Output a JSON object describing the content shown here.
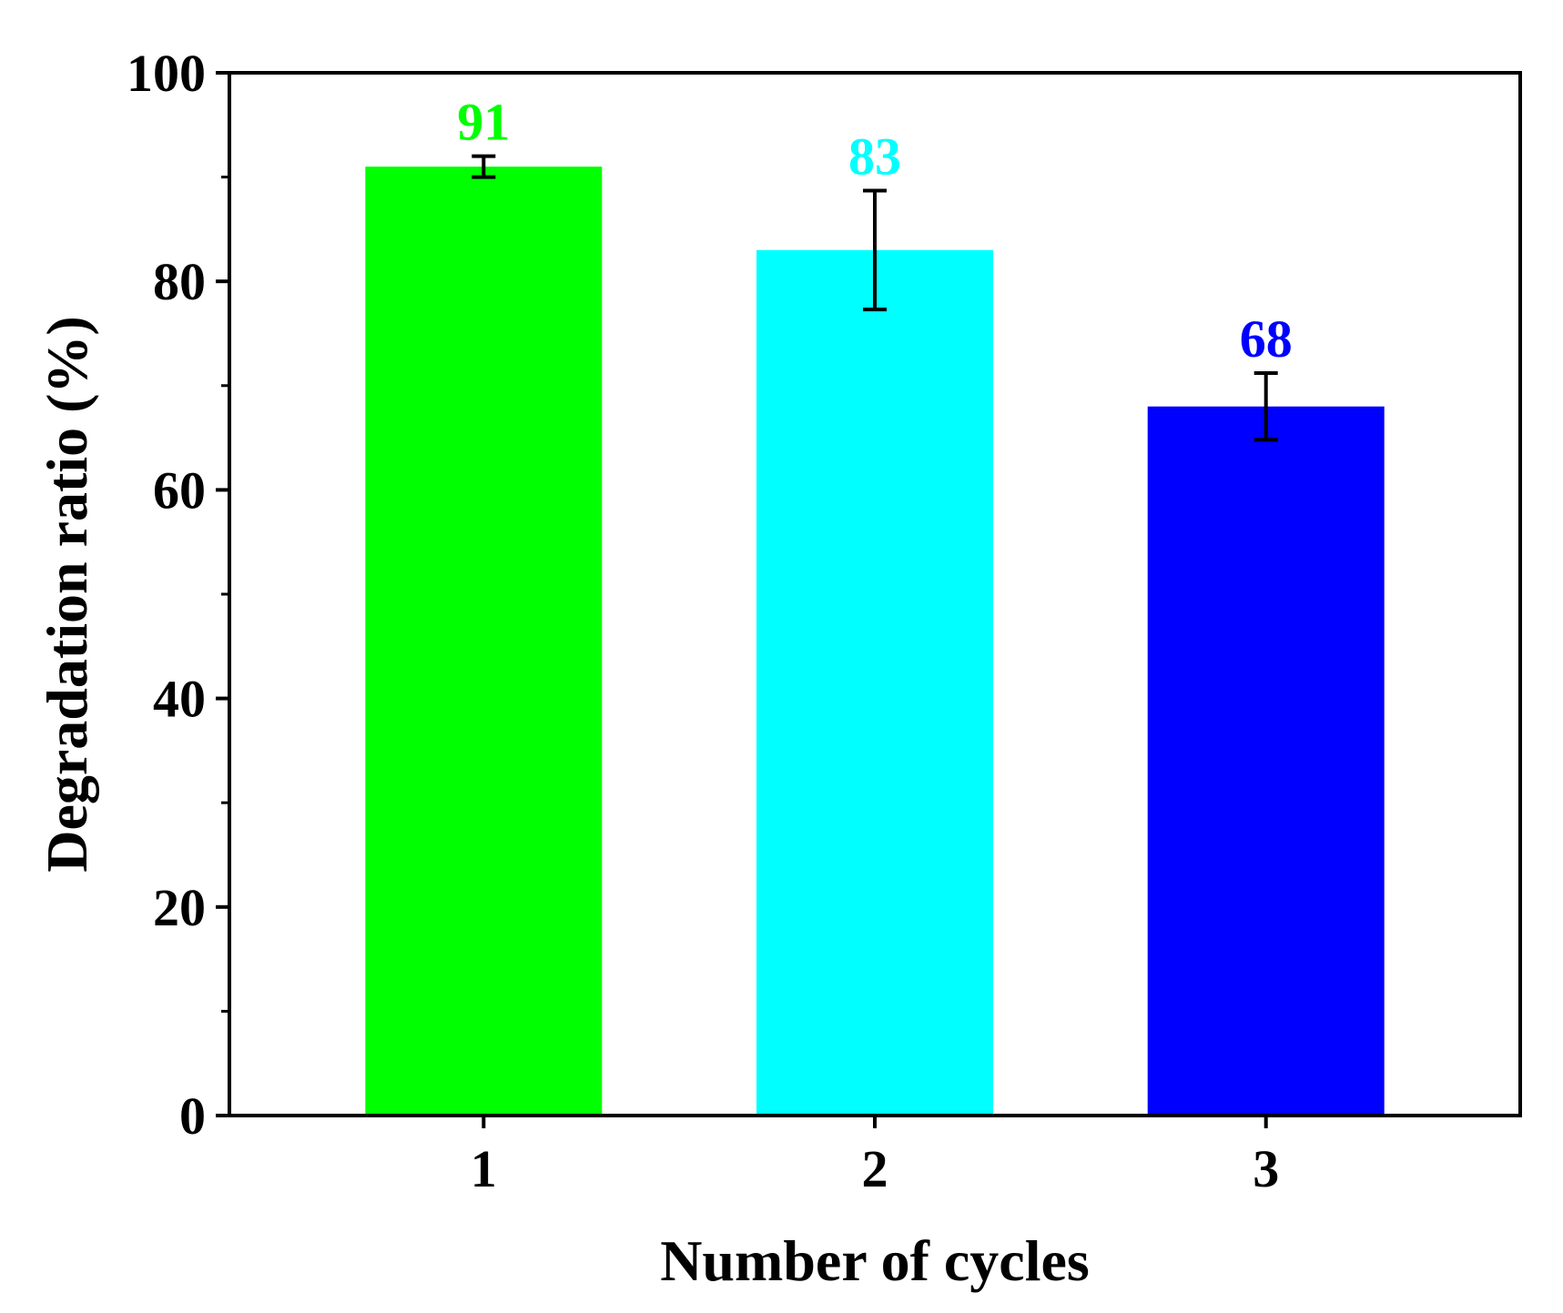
{
  "chart_data": {
    "type": "bar",
    "title": "",
    "xlabel": "Number of cycles",
    "ylabel": "Degradation ratio (%)",
    "categories": [
      "1",
      "2",
      "3"
    ],
    "values": [
      91,
      83,
      68
    ],
    "errors": [
      1.0,
      5.7,
      3.2
    ],
    "data_labels": [
      "91",
      "83",
      "68"
    ],
    "colors": [
      "#00ff00",
      "#00ffff",
      "#0000ff"
    ],
    "ylim": [
      0,
      100
    ],
    "yticks_major": [
      0,
      20,
      40,
      60,
      80,
      100
    ],
    "yticks_major_labels": [
      "0",
      "20",
      "40",
      "60",
      "80",
      "100"
    ],
    "yticks_minor": [
      10,
      30,
      50,
      70,
      90
    ],
    "grid": false,
    "legend": "none"
  }
}
